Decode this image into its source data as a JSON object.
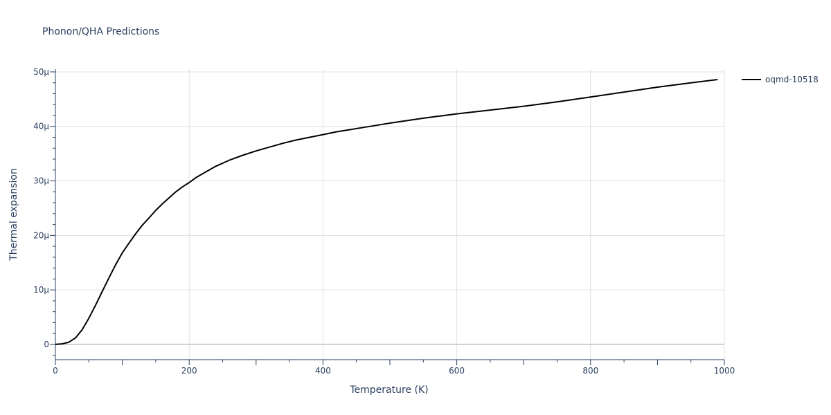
{
  "chart_data": {
    "type": "line",
    "title": "Phonon/QHA Predictions",
    "xlabel": "Temperature (K)",
    "ylabel": "Thermal expansion",
    "xlim": [
      0,
      1000
    ],
    "ylim": [
      -2.8,
      50.5
    ],
    "x_ticks": [
      0,
      200,
      400,
      600,
      800,
      1000
    ],
    "x_tick_labels": [
      "0",
      "200",
      "400",
      "600",
      "800",
      "1000"
    ],
    "y_ticks": [
      0,
      10,
      20,
      30,
      40,
      50
    ],
    "y_tick_labels": [
      "0",
      "10μ",
      "20μ",
      "30μ",
      "40μ",
      "50μ"
    ],
    "y_unit": "μ (×1e-6)",
    "grid": true,
    "legend_position": "top-right",
    "series": [
      {
        "name": "oqmd-10518",
        "color": "#000000",
        "x": [
          0,
          10,
          20,
          30,
          40,
          50,
          60,
          70,
          80,
          90,
          100,
          110,
          120,
          130,
          140,
          150,
          160,
          170,
          180,
          190,
          200,
          210,
          220,
          240,
          260,
          280,
          300,
          320,
          340,
          360,
          380,
          400,
          420,
          440,
          460,
          480,
          500,
          550,
          600,
          650,
          700,
          750,
          800,
          850,
          900,
          950,
          990
        ],
        "y": [
          0,
          0.1,
          0.4,
          1.2,
          2.7,
          4.8,
          7.2,
          9.7,
          12.2,
          14.6,
          16.8,
          18.6,
          20.3,
          21.9,
          23.2,
          24.6,
          25.8,
          26.9,
          28.0,
          28.9,
          29.7,
          30.6,
          31.3,
          32.7,
          33.8,
          34.7,
          35.5,
          36.2,
          36.9,
          37.5,
          38.0,
          38.5,
          39.0,
          39.4,
          39.8,
          40.2,
          40.6,
          41.5,
          42.3,
          43.0,
          43.7,
          44.5,
          45.4,
          46.3,
          47.2,
          48.0,
          48.6
        ]
      }
    ]
  }
}
